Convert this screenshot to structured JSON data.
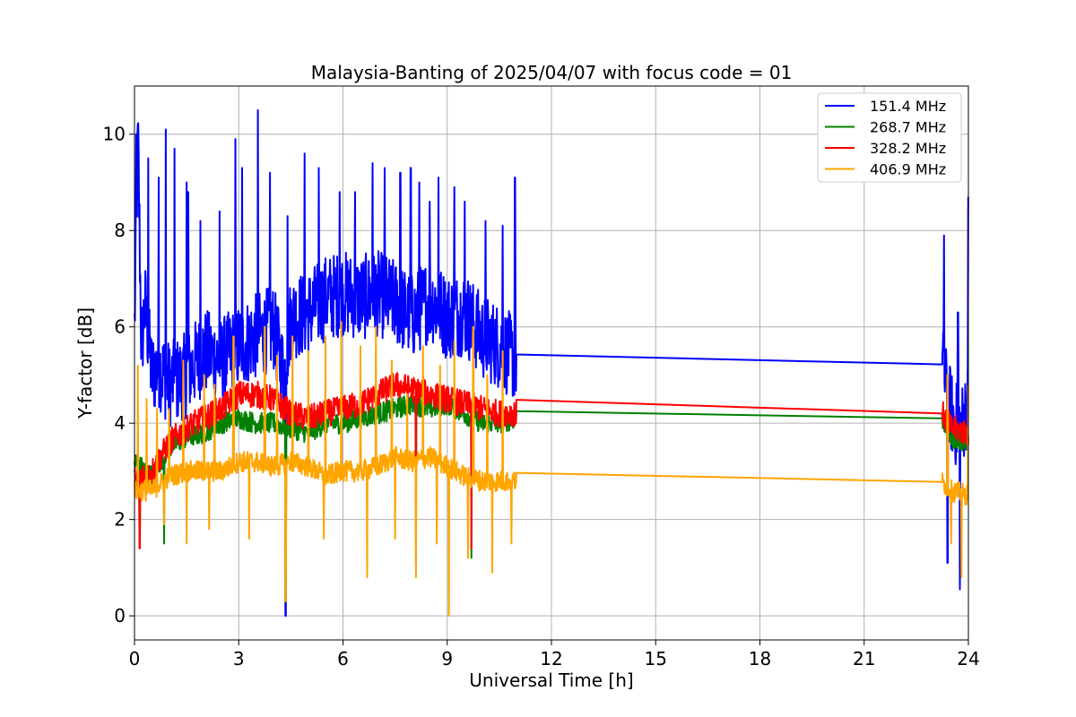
{
  "chart_data": {
    "type": "line",
    "title": "Malaysia-Banting of 2025/04/07 with focus code = 01",
    "xlabel": "Universal Time [h]",
    "ylabel": "Y-factor [dB]",
    "xlim": [
      0,
      24
    ],
    "ylim": [
      -0.5,
      11
    ],
    "xticks": [
      0,
      3,
      6,
      9,
      12,
      15,
      18,
      21,
      24
    ],
    "yticks": [
      0,
      2,
      4,
      6,
      8,
      10
    ],
    "grid": true,
    "legend_position": "top-right",
    "data_gap": [
      11.0,
      23.25
    ],
    "series": [
      {
        "name": "151.4 MHz",
        "color": "#0000ff",
        "points": [
          [
            0,
            6.0
          ],
          [
            0.1,
            10.0
          ],
          [
            0.2,
            5.5
          ],
          [
            0.3,
            6.5
          ],
          [
            0.5,
            5.0
          ],
          [
            0.7,
            5.2
          ],
          [
            1.0,
            4.8
          ],
          [
            1.5,
            5.0
          ],
          [
            2.0,
            5.5
          ],
          [
            2.5,
            5.3
          ],
          [
            3.0,
            5.6
          ],
          [
            3.5,
            5.8
          ],
          [
            4.0,
            6.0
          ],
          [
            4.3,
            5.0
          ],
          [
            4.5,
            6.2
          ],
          [
            5.0,
            6.3
          ],
          [
            5.5,
            6.6
          ],
          [
            6.0,
            6.7
          ],
          [
            6.5,
            6.6
          ],
          [
            7.0,
            6.7
          ],
          [
            7.5,
            6.5
          ],
          [
            8.0,
            6.2
          ],
          [
            8.5,
            6.6
          ],
          [
            9.0,
            6.2
          ],
          [
            9.5,
            6.3
          ],
          [
            10.0,
            5.8
          ],
          [
            10.5,
            5.6
          ],
          [
            11.0,
            5.3
          ],
          [
            23.25,
            5.22
          ],
          [
            23.4,
            4.5
          ],
          [
            23.6,
            4.0
          ],
          [
            23.8,
            3.9
          ],
          [
            24.0,
            4.5
          ]
        ],
        "spikes": [
          [
            0.05,
            10.0
          ],
          [
            0.4,
            9.5
          ],
          [
            0.7,
            9.1
          ],
          [
            0.9,
            10.1
          ],
          [
            1.15,
            9.7
          ],
          [
            1.5,
            9.0
          ],
          [
            1.55,
            8.8
          ],
          [
            1.9,
            8.2
          ],
          [
            2.45,
            8.4
          ],
          [
            2.9,
            9.9
          ],
          [
            3.1,
            9.3
          ],
          [
            3.55,
            10.5
          ],
          [
            3.9,
            9.2
          ],
          [
            4.4,
            8.3
          ],
          [
            4.9,
            9.6
          ],
          [
            5.3,
            9.3
          ],
          [
            5.9,
            8.8
          ],
          [
            6.35,
            8.8
          ],
          [
            6.85,
            9.4
          ],
          [
            7.2,
            9.3
          ],
          [
            7.65,
            9.2
          ],
          [
            7.95,
            9.3
          ],
          [
            8.2,
            9.0
          ],
          [
            8.5,
            8.6
          ],
          [
            8.75,
            9.1
          ],
          [
            9.2,
            8.9
          ],
          [
            9.5,
            8.6
          ],
          [
            10.1,
            8.2
          ],
          [
            10.6,
            8.1
          ],
          [
            10.95,
            9.1
          ],
          [
            23.3,
            7.9
          ],
          [
            23.7,
            6.3
          ],
          [
            24.0,
            8.7
          ]
        ],
        "dips": [
          [
            4.35,
            0.0
          ],
          [
            23.4,
            1.1
          ],
          [
            23.75,
            0.55
          ]
        ]
      },
      {
        "name": "268.7 MHz",
        "color": "#008000",
        "points": [
          [
            0,
            3.2
          ],
          [
            0.5,
            2.9
          ],
          [
            1.0,
            3.5
          ],
          [
            1.5,
            3.7
          ],
          [
            2.0,
            3.8
          ],
          [
            2.5,
            4.0
          ],
          [
            3.0,
            4.1
          ],
          [
            3.5,
            4.0
          ],
          [
            4.0,
            4.0
          ],
          [
            4.5,
            3.9
          ],
          [
            5.0,
            3.8
          ],
          [
            5.5,
            4.0
          ],
          [
            6.0,
            4.0
          ],
          [
            6.5,
            4.1
          ],
          [
            7.0,
            4.2
          ],
          [
            7.5,
            4.3
          ],
          [
            8.0,
            4.4
          ],
          [
            8.5,
            4.3
          ],
          [
            9.0,
            4.4
          ],
          [
            9.5,
            4.2
          ],
          [
            10.0,
            4.0
          ],
          [
            10.5,
            4.0
          ],
          [
            11.0,
            4.1
          ],
          [
            23.25,
            4.1
          ],
          [
            23.5,
            3.7
          ],
          [
            24.0,
            3.6
          ]
        ],
        "spikes": [],
        "dips": [
          [
            0.15,
            1.5
          ],
          [
            0.85,
            1.5
          ],
          [
            4.35,
            0.3
          ],
          [
            8.1,
            1.1
          ],
          [
            9.7,
            1.2
          ]
        ]
      },
      {
        "name": "328.2 MHz",
        "color": "#ff0000",
        "points": [
          [
            0,
            2.8
          ],
          [
            0.5,
            3.0
          ],
          [
            1.0,
            3.6
          ],
          [
            1.5,
            3.9
          ],
          [
            2.0,
            4.1
          ],
          [
            2.5,
            4.3
          ],
          [
            3.0,
            4.6
          ],
          [
            3.5,
            4.6
          ],
          [
            4.0,
            4.5
          ],
          [
            4.5,
            4.2
          ],
          [
            5.0,
            4.1
          ],
          [
            5.5,
            4.2
          ],
          [
            6.0,
            4.3
          ],
          [
            6.5,
            4.4
          ],
          [
            7.0,
            4.6
          ],
          [
            7.5,
            4.8
          ],
          [
            8.0,
            4.7
          ],
          [
            8.5,
            4.6
          ],
          [
            9.0,
            4.5
          ],
          [
            9.5,
            4.4
          ],
          [
            10.0,
            4.3
          ],
          [
            10.5,
            4.2
          ],
          [
            11.0,
            4.22
          ],
          [
            23.25,
            4.2
          ],
          [
            23.5,
            3.9
          ],
          [
            24.0,
            3.8
          ]
        ],
        "spikes": [],
        "dips": [
          [
            0.15,
            1.4
          ],
          [
            8.1,
            2.2
          ],
          [
            9.7,
            1.4
          ]
        ]
      },
      {
        "name": "406.9 MHz",
        "color": "#ffa500",
        "points": [
          [
            0,
            2.6
          ],
          [
            0.5,
            2.6
          ],
          [
            1.0,
            2.9
          ],
          [
            1.5,
            3.0
          ],
          [
            2.0,
            3.0
          ],
          [
            2.5,
            3.0
          ],
          [
            3.0,
            3.2
          ],
          [
            3.5,
            3.2
          ],
          [
            4.0,
            3.1
          ],
          [
            4.5,
            3.2
          ],
          [
            5.0,
            3.1
          ],
          [
            5.5,
            2.9
          ],
          [
            6.0,
            3.0
          ],
          [
            6.5,
            3.0
          ],
          [
            7.0,
            3.1
          ],
          [
            7.5,
            3.3
          ],
          [
            8.0,
            3.2
          ],
          [
            8.5,
            3.3
          ],
          [
            9.0,
            3.1
          ],
          [
            9.5,
            2.9
          ],
          [
            10.0,
            2.8
          ],
          [
            10.5,
            2.8
          ],
          [
            11.0,
            2.8
          ],
          [
            23.25,
            2.78
          ],
          [
            23.5,
            2.6
          ],
          [
            24.0,
            2.5
          ]
        ],
        "spikes": [
          [
            0.1,
            5.2
          ],
          [
            0.35,
            4.5
          ],
          [
            0.65,
            4.3
          ],
          [
            1.0,
            4.3
          ],
          [
            1.4,
            5.3
          ],
          [
            2.0,
            5.0
          ],
          [
            2.3,
            4.8
          ],
          [
            2.85,
            5.8
          ],
          [
            3.3,
            6.3
          ],
          [
            3.75,
            6.0
          ],
          [
            4.1,
            5.4
          ],
          [
            4.55,
            5.8
          ],
          [
            5.0,
            5.5
          ],
          [
            5.5,
            5.8
          ],
          [
            5.95,
            6.1
          ],
          [
            6.5,
            5.6
          ],
          [
            6.95,
            6.0
          ],
          [
            7.4,
            5.3
          ],
          [
            7.85,
            4.6
          ],
          [
            8.3,
            5.6
          ],
          [
            8.8,
            5.2
          ],
          [
            9.2,
            5.7
          ],
          [
            9.75,
            6.0
          ],
          [
            10.15,
            5.0
          ],
          [
            10.6,
            5.5
          ],
          [
            10.85,
            6.8
          ],
          [
            23.4,
            5.0
          ],
          [
            23.8,
            5.8
          ],
          [
            24.0,
            4.8
          ]
        ],
        "dips": [
          [
            0.85,
            1.9
          ],
          [
            1.5,
            1.5
          ],
          [
            2.15,
            1.8
          ],
          [
            3.3,
            1.6
          ],
          [
            4.35,
            0.3
          ],
          [
            5.45,
            1.6
          ],
          [
            6.7,
            0.8
          ],
          [
            7.5,
            1.6
          ],
          [
            8.1,
            0.8
          ],
          [
            8.7,
            1.5
          ],
          [
            9.05,
            0.0
          ],
          [
            9.6,
            1.2
          ],
          [
            10.3,
            0.9
          ],
          [
            10.85,
            1.5
          ],
          [
            23.5,
            1.5
          ],
          [
            23.8,
            0.8
          ]
        ]
      }
    ]
  }
}
